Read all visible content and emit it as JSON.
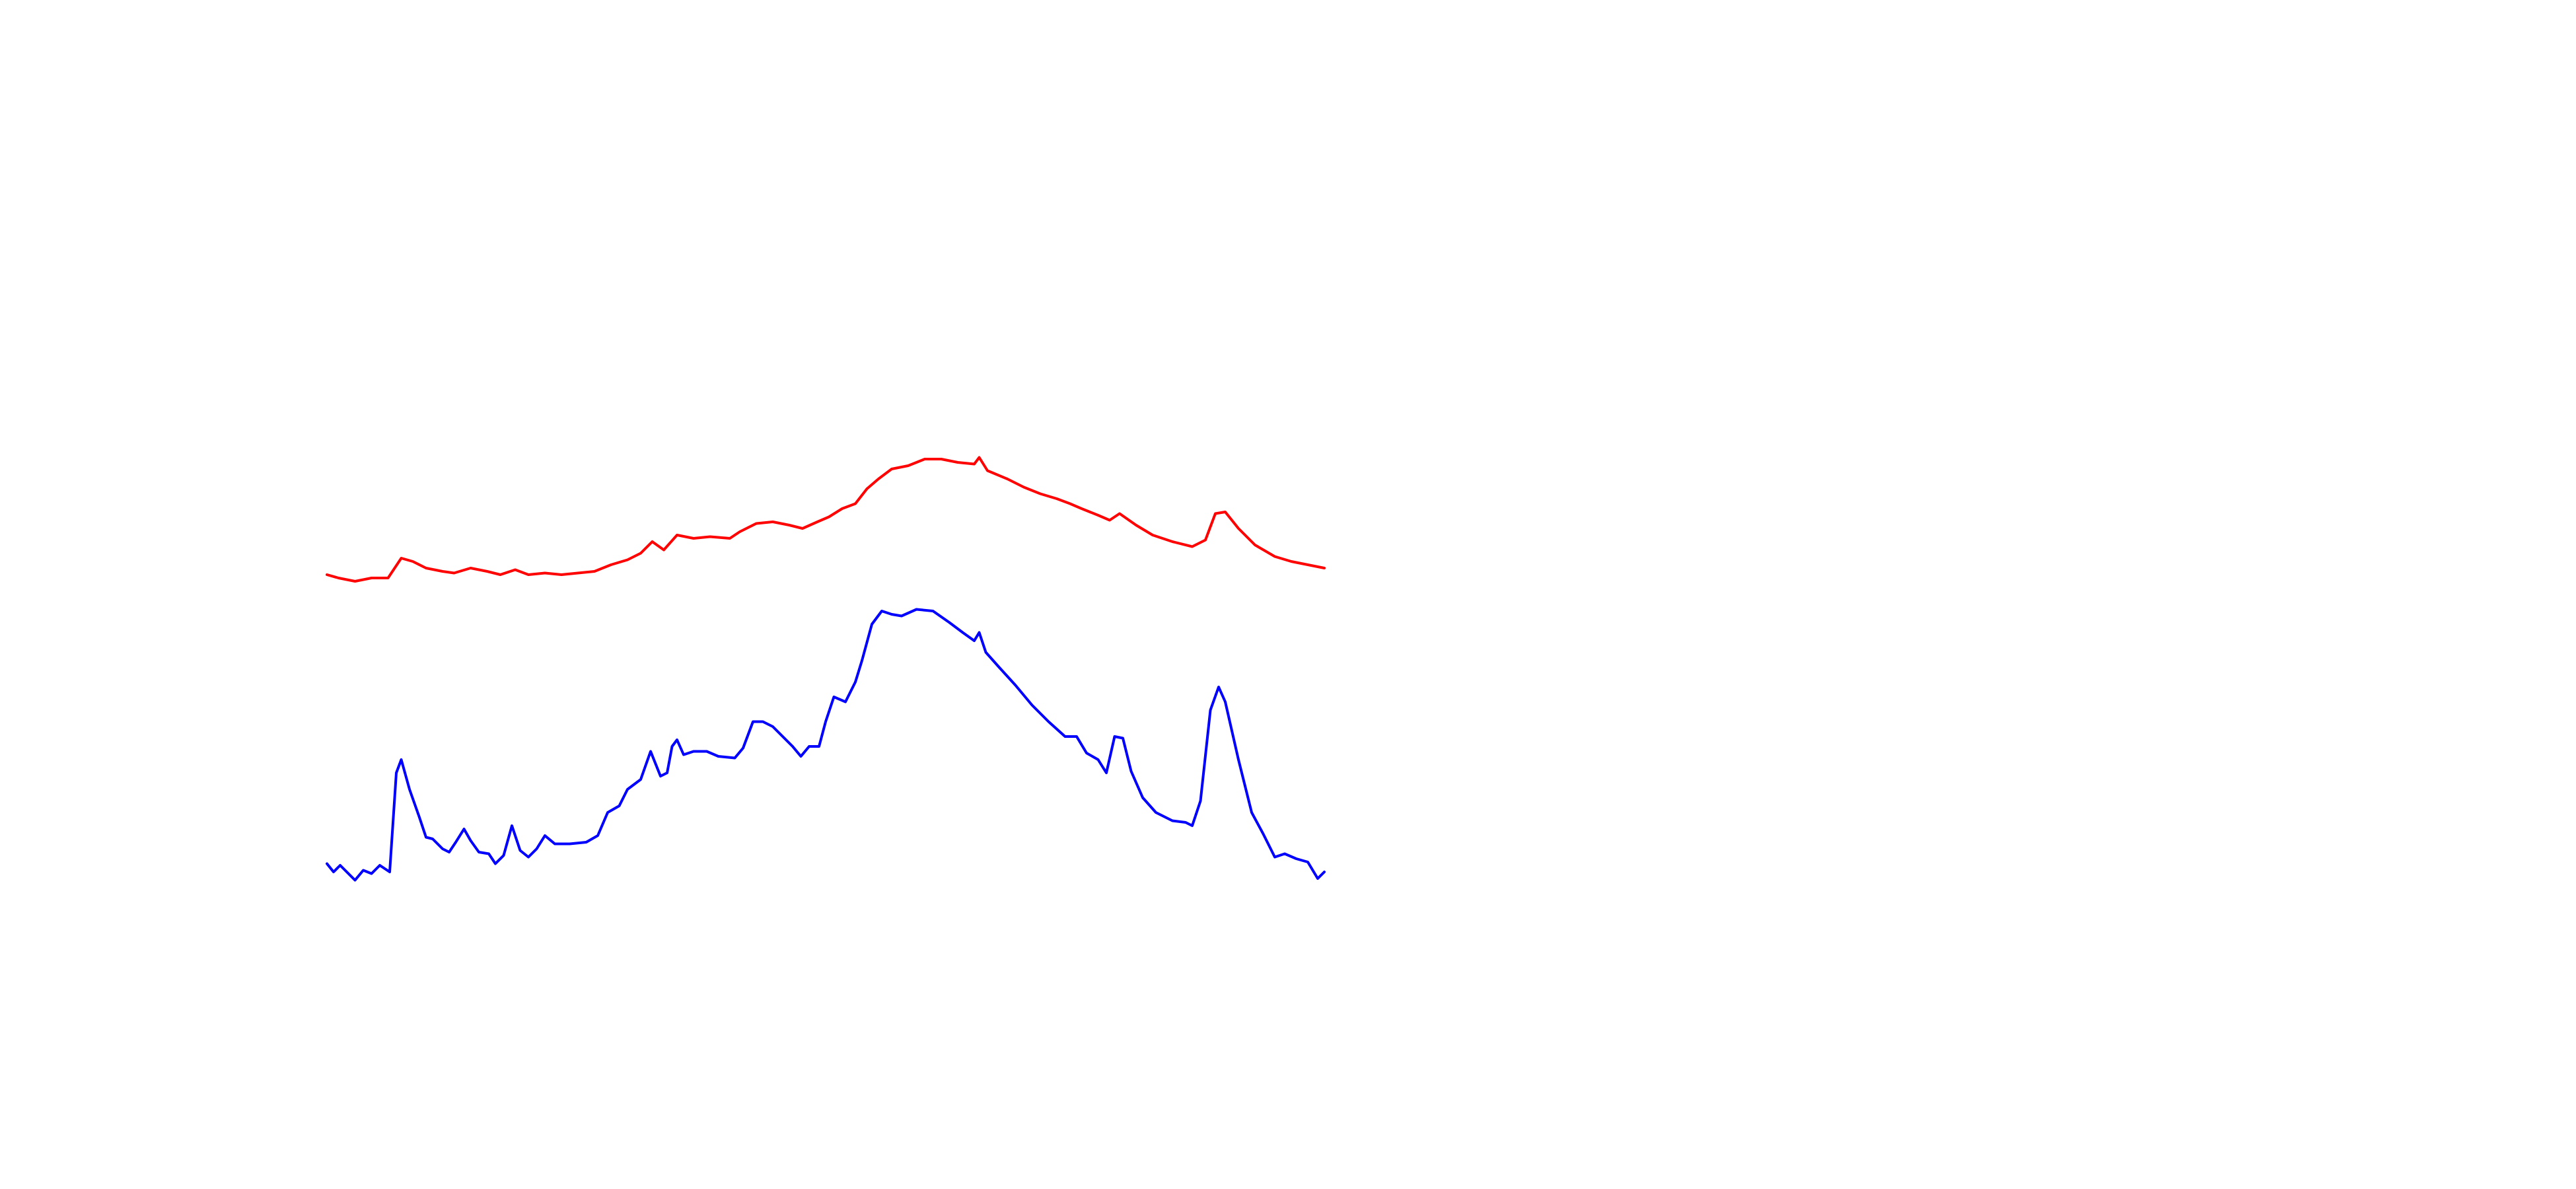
{
  "chart_data": {
    "type": "line",
    "xlim": [
      0,
      1560
    ],
    "ylim": [
      0,
      720
    ],
    "series": [
      {
        "color": "#ff0000",
        "x": [
          198,
          205,
          215,
          225,
          235,
          243,
          250,
          258,
          268,
          275,
          285,
          295,
          303,
          312,
          320,
          330,
          340,
          350,
          360,
          370,
          380,
          388,
          395,
          402,
          410,
          420,
          430,
          442,
          448,
          458,
          468,
          478,
          486,
          495,
          502,
          510,
          518,
          525,
          532,
          540,
          550,
          560,
          570,
          580,
          590,
          593,
          598,
          610,
          620,
          630,
          640,
          648,
          655,
          665,
          672,
          678,
          688,
          698,
          710,
          722,
          730,
          736,
          742,
          750,
          760,
          772,
          782,
          792,
          802
        ],
        "values": [
          372,
          370,
          368,
          370,
          370,
          382,
          380,
          376,
          374,
          373,
          376,
          374,
          372,
          375,
          372,
          373,
          372,
          373,
          374,
          378,
          381,
          385,
          392,
          387,
          396,
          394,
          395,
          394,
          398,
          403,
          404,
          402,
          400,
          404,
          407,
          412,
          415,
          424,
          430,
          436,
          438,
          442,
          442,
          440,
          439,
          443,
          435,
          430,
          425,
          421,
          418,
          415,
          412,
          408,
          405,
          409,
          402,
          396,
          392,
          389,
          393,
          409,
          410,
          400,
          390,
          383,
          380,
          378,
          376
        ]
      },
      {
        "color": "#0000ff",
        "x": [
          198,
          202,
          206,
          210,
          215,
          220,
          225,
          230,
          236,
          240,
          243,
          248,
          254,
          258,
          262,
          268,
          272,
          276,
          281,
          285,
          290,
          296,
          300,
          305,
          310,
          315,
          320,
          325,
          330,
          336,
          345,
          355,
          362,
          368,
          375,
          380,
          388,
          394,
          400,
          404,
          407,
          410,
          414,
          420,
          428,
          435,
          445,
          450,
          456,
          462,
          468,
          475,
          480,
          485,
          490,
          496,
          500,
          505,
          512,
          518,
          522,
          528,
          534,
          540,
          546,
          555,
          565,
          575,
          583,
          590,
          593,
          597,
          605,
          615,
          625,
          635,
          645,
          652,
          658,
          665,
          670,
          675,
          680,
          685,
          692,
          700,
          710,
          718,
          722,
          727,
          733,
          738,
          742,
          750,
          758,
          765,
          772,
          778,
          785,
          792,
          798,
          802
        ],
        "values": [
          197,
          192,
          196,
          192,
          187,
          193,
          191,
          196,
          192,
          252,
          260,
          242,
          225,
          213,
          212,
          206,
          204,
          210,
          218,
          211,
          204,
          203,
          197,
          202,
          220,
          205,
          201,
          206,
          214,
          209,
          209,
          210,
          214,
          228,
          232,
          242,
          248,
          265,
          250,
          252,
          268,
          272,
          263,
          265,
          265,
          262,
          261,
          267,
          283,
          283,
          280,
          273,
          268,
          262,
          268,
          268,
          283,
          298,
          295,
          307,
          320,
          342,
          350,
          348,
          347,
          351,
          350,
          343,
          337,
          332,
          337,
          325,
          316,
          305,
          293,
          283,
          274,
          274,
          264,
          260,
          252,
          274,
          273,
          253,
          237,
          228,
          223,
          222,
          220,
          235,
          290,
          304,
          295,
          260,
          228,
          215,
          201,
          203,
          200,
          198,
          188,
          192
        ]
      }
    ]
  }
}
